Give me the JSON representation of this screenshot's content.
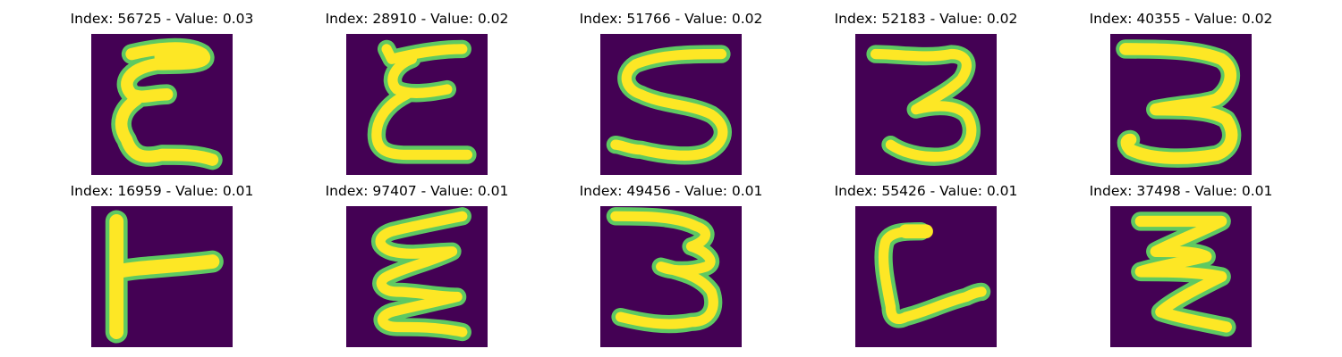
{
  "figure": {
    "colormap": "viridis",
    "background_color": "#440154",
    "stroke_color": "#fde725",
    "edge_colors": [
      "#21918c",
      "#5ec962",
      "#3b528b"
    ]
  },
  "panels": [
    {
      "title": "Index: 56725 - Value: 0.03",
      "index": 56725,
      "value": 0.03,
      "glyph": "letter E with curved strokes",
      "image_name": "digit-image-56725"
    },
    {
      "title": "Index: 28910 - Value: 0.02",
      "index": 28910,
      "value": 0.02,
      "glyph": "letter E with curved strokes",
      "image_name": "digit-image-28910"
    },
    {
      "title": "Index: 51766 - Value: 0.02",
      "index": 51766,
      "value": 0.02,
      "glyph": "letter S",
      "image_name": "digit-image-51766"
    },
    {
      "title": "Index: 52183 - Value: 0.02",
      "index": 52183,
      "value": 0.02,
      "glyph": "digit 3",
      "image_name": "digit-image-52183"
    },
    {
      "title": "Index: 40355 - Value: 0.02",
      "index": 40355,
      "value": 0.02,
      "glyph": "digit 3",
      "image_name": "digit-image-40355"
    },
    {
      "title": "Index: 16959 - Value: 0.01",
      "index": 16959,
      "value": 0.01,
      "glyph": "rotated T",
      "image_name": "digit-image-16959"
    },
    {
      "title": "Index: 97407 - Value: 0.01",
      "index": 97407,
      "value": 0.01,
      "glyph": "zigzag E",
      "image_name": "digit-image-97407"
    },
    {
      "title": "Index: 49456 - Value: 0.01",
      "index": 49456,
      "value": 0.01,
      "glyph": "digit 3",
      "image_name": "digit-image-49456"
    },
    {
      "title": "Index: 55426 - Value: 0.01",
      "index": 55426,
      "value": 0.01,
      "glyph": "letter L",
      "image_name": "digit-image-55426"
    },
    {
      "title": "Index: 37498 - Value: 0.01",
      "index": 37498,
      "value": 0.01,
      "glyph": "zigzag Z",
      "image_name": "digit-image-37498"
    }
  ]
}
